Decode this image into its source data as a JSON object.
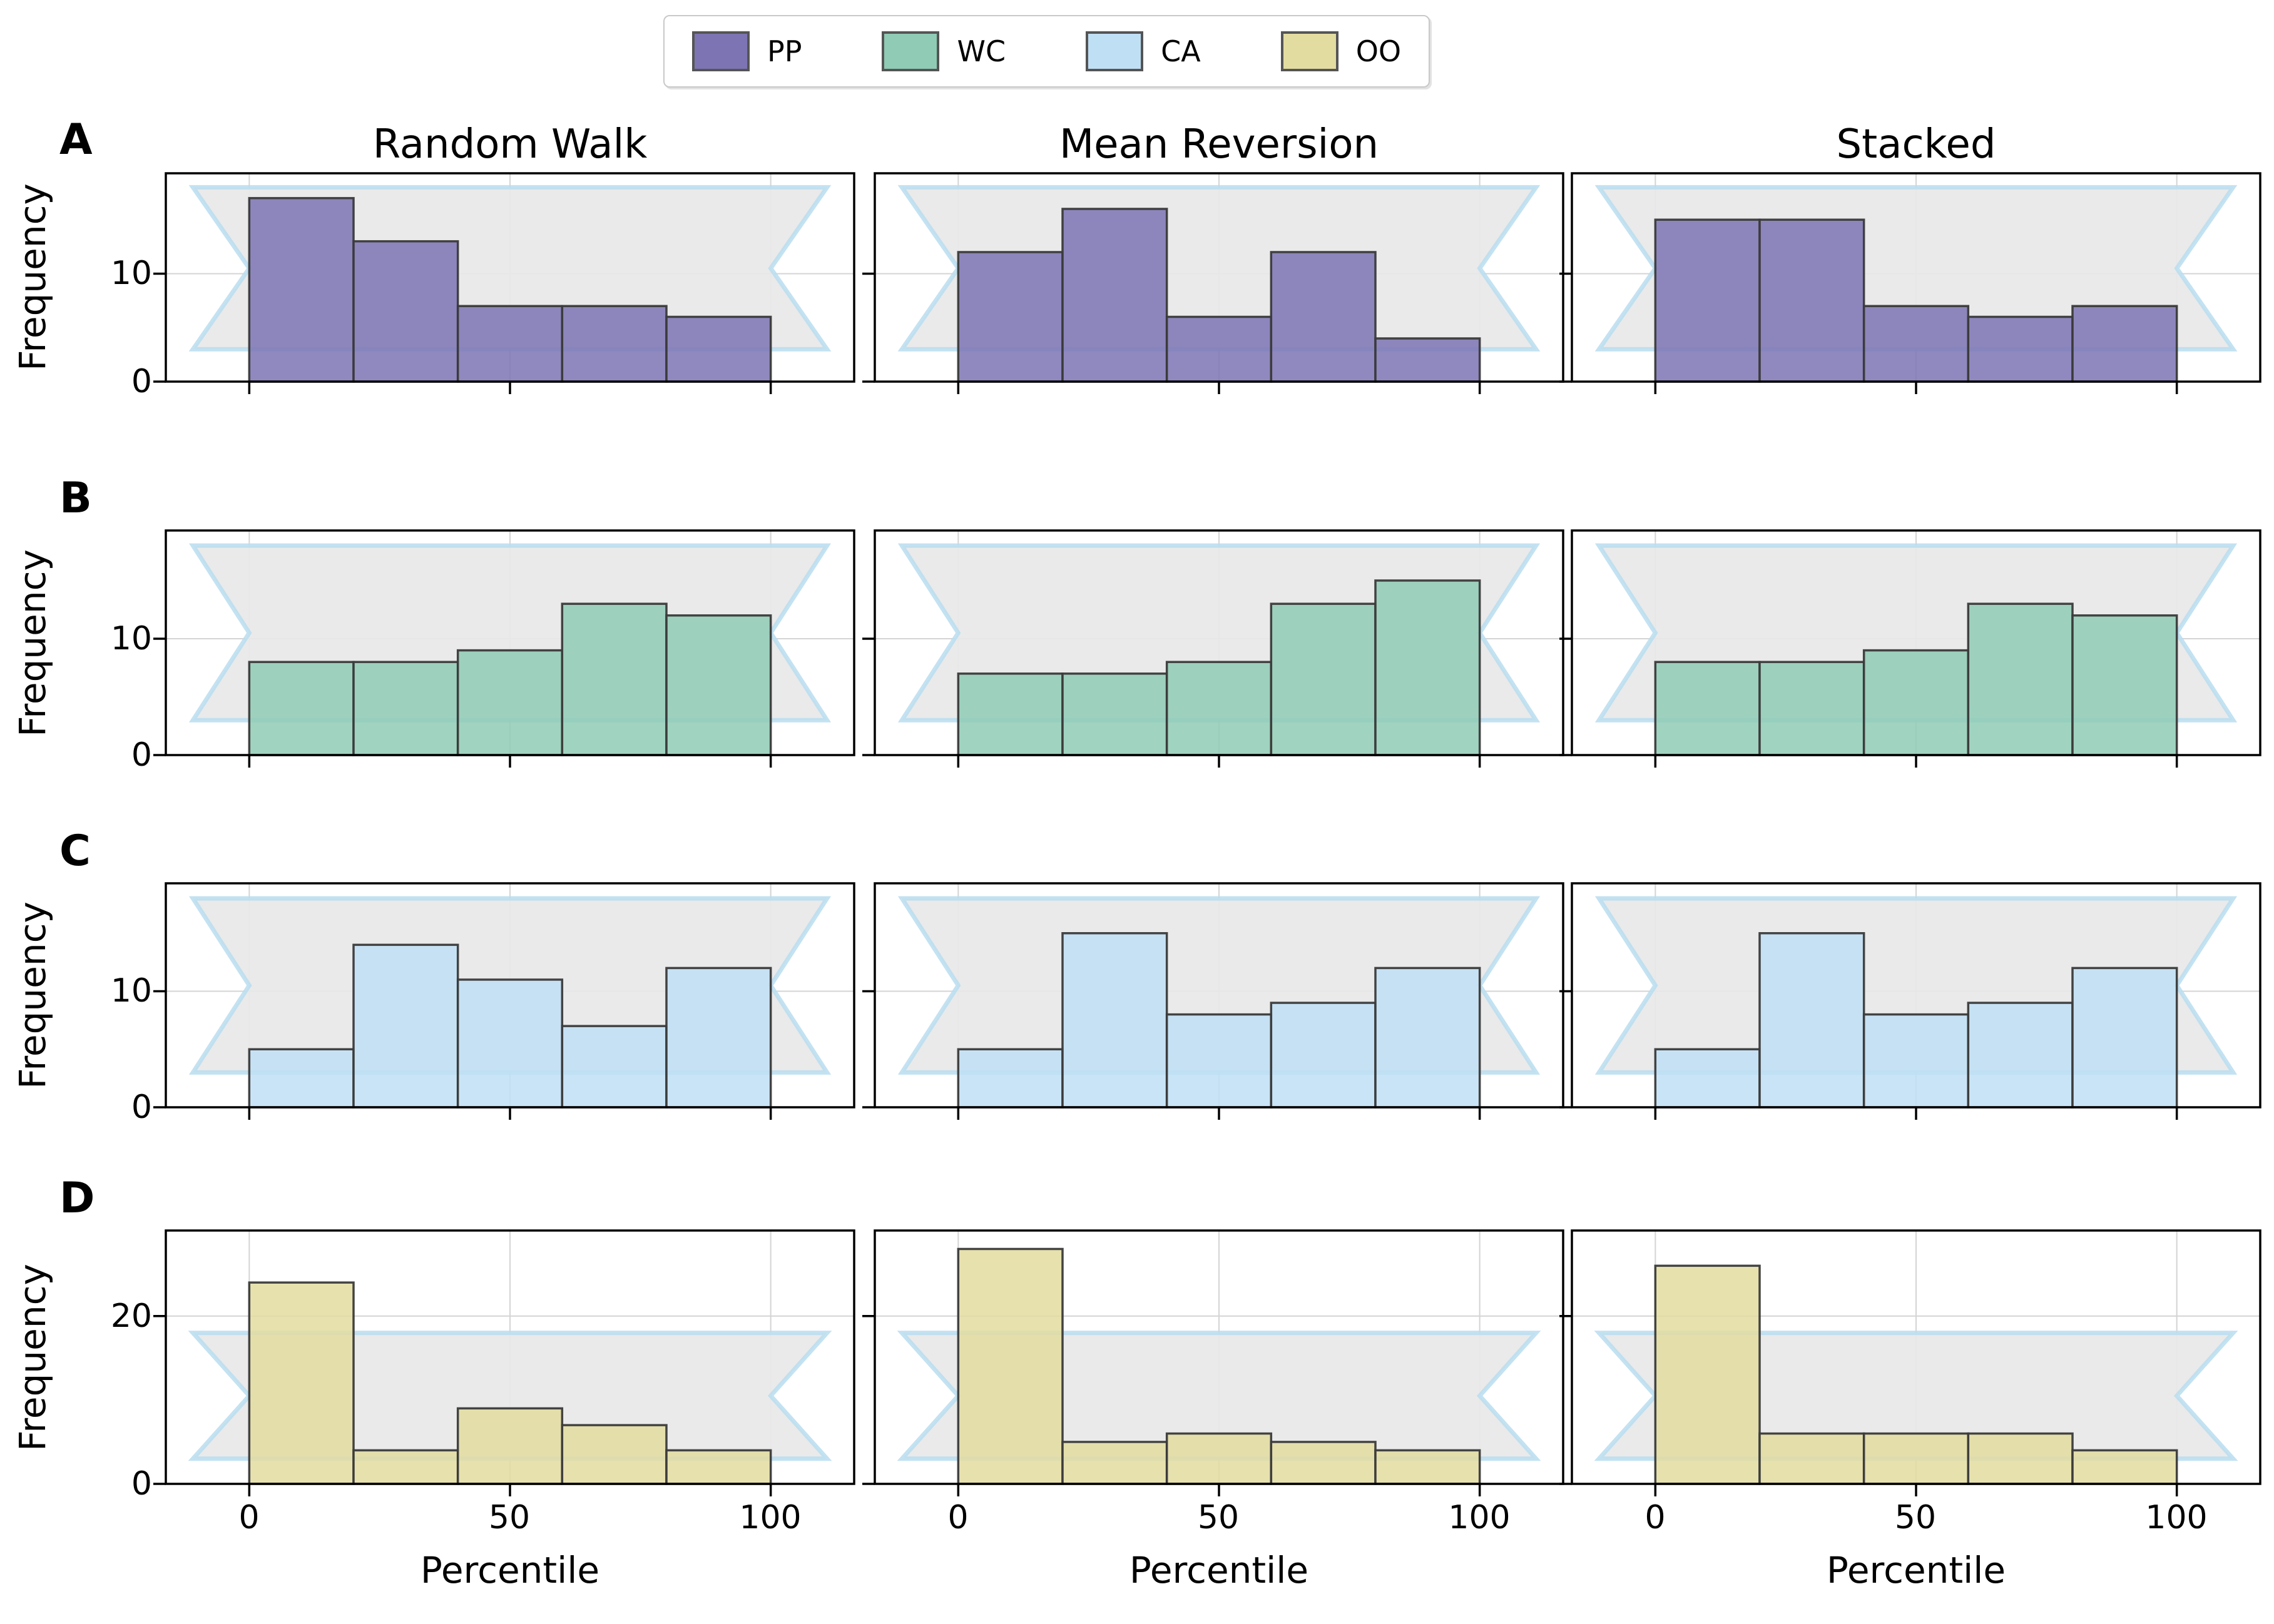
{
  "figure": {
    "legend": {
      "items": [
        {
          "label": "PP",
          "color": "#7D74B4"
        },
        {
          "label": "WC",
          "color": "#8FCBB5"
        },
        {
          "label": "CA",
          "color": "#BFDFF5"
        },
        {
          "label": "OO",
          "color": "#E3DCA0"
        }
      ]
    },
    "column_titles": [
      "Random Walk",
      "Mean Reversion",
      "Stacked"
    ],
    "row_labels": [
      "A",
      "B",
      "C",
      "D"
    ],
    "xlabel": "Percentile",
    "ylabel": "Frequency"
  },
  "chart_data": {
    "type": "bar",
    "subtype": "histogram-grid",
    "title": "",
    "xlabel": "Percentile",
    "ylabel": "Frequency",
    "columns": [
      "Random Walk",
      "Mean Reversion",
      "Stacked"
    ],
    "bin_edges": [
      0,
      20,
      40,
      60,
      80,
      100
    ],
    "xticks": [
      0,
      50,
      100
    ],
    "xtick_labels": [
      "0",
      "50",
      "100"
    ],
    "xlim": [
      -16,
      116
    ],
    "grid": true,
    "legend_position": "top-center",
    "rows": [
      {
        "panel": "A",
        "series": "PP",
        "color": "#7D74B4",
        "ylim": [
          0,
          19.3
        ],
        "yticks": [
          0,
          10
        ],
        "ytick_labels": [
          "0",
          "10"
        ],
        "values_by_column": [
          [
            17,
            13,
            7,
            7,
            6
          ],
          [
            12,
            16,
            6,
            12,
            4
          ],
          [
            15,
            15,
            7,
            6,
            7
          ]
        ]
      },
      {
        "panel": "B",
        "series": "WC",
        "color": "#8FCBB5",
        "ylim": [
          0,
          19.3
        ],
        "yticks": [
          0,
          10
        ],
        "ytick_labels": [
          "0",
          "10"
        ],
        "values_by_column": [
          [
            8,
            8,
            9,
            13,
            12
          ],
          [
            7,
            7,
            8,
            13,
            15
          ],
          [
            8,
            8,
            9,
            13,
            12
          ]
        ]
      },
      {
        "panel": "C",
        "series": "CA",
        "color": "#BFDFF5",
        "ylim": [
          0,
          19.3
        ],
        "yticks": [
          0,
          10
        ],
        "ytick_labels": [
          "0",
          "10"
        ],
        "values_by_column": [
          [
            5,
            14,
            11,
            7,
            12
          ],
          [
            5,
            15,
            8,
            9,
            12
          ],
          [
            5,
            15,
            8,
            9,
            12
          ]
        ]
      },
      {
        "panel": "D",
        "series": "OO",
        "color": "#E3DCA0",
        "ylim": [
          0,
          30.2
        ],
        "yticks": [
          0,
          20
        ],
        "ytick_labels": [
          "0",
          "20"
        ],
        "values_by_column": [
          [
            24,
            4,
            9,
            7,
            4
          ],
          [
            28,
            5,
            6,
            5,
            4
          ],
          [
            26,
            6,
            6,
            6,
            4
          ]
        ]
      }
    ],
    "reference_band": {
      "description": "gray ribbon band with notched ends, light-blue outline, drawn behind bars",
      "y_top": 18,
      "y_bottom": 3,
      "y_notch": 10.5,
      "x_outer_left": -10.8,
      "x_outer_right": 110.8,
      "x_notch_left": 0,
      "x_notch_right": 100,
      "fill_color": "#E8E8E8",
      "edge_color": "#B9DDF0"
    }
  }
}
